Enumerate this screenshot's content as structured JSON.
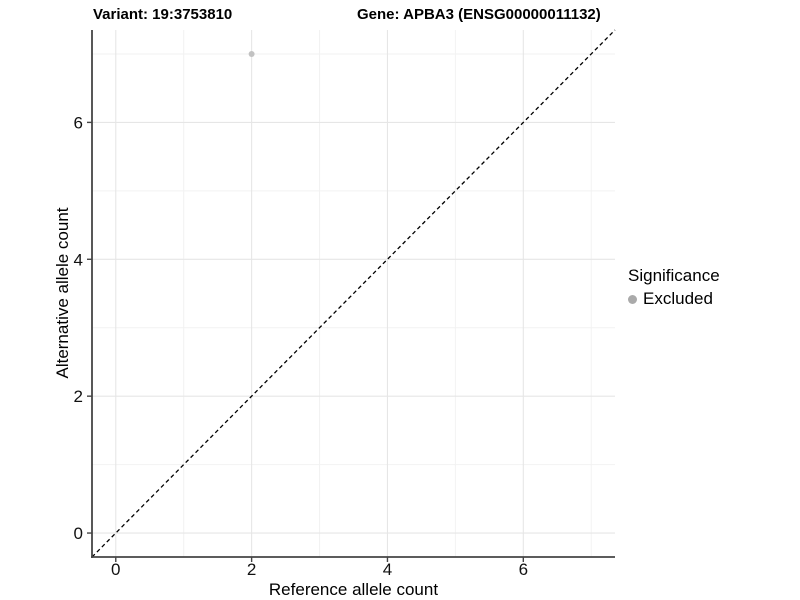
{
  "title": {
    "variant_label": "Variant: 19:3753810",
    "gene_label": "Gene: APBA3 (ENSG00000011132)"
  },
  "axes": {
    "x_label": "Reference allele count",
    "y_label": "Alternative allele count"
  },
  "legend": {
    "title": "Significance",
    "items": [
      {
        "label": "Excluded",
        "color": "#aaaaaa"
      }
    ]
  },
  "colors": {
    "background": "#ffffff",
    "major_grid": "#e6e6e6",
    "minor_grid": "#f2f2f2",
    "axis_line": "#454545",
    "tick_label": "#111111",
    "point_excluded": "#c2c2c2",
    "identity_line": "#000000"
  },
  "chart_data": {
    "type": "scatter",
    "title": "Variant: 19:3753810   Gene: APBA3 (ENSG00000011132)",
    "xlabel": "Reference allele count",
    "ylabel": "Alternative allele count",
    "xlim": [
      -0.35,
      7.35
    ],
    "ylim": [
      -0.35,
      7.35
    ],
    "x_ticks": [
      0,
      2,
      4,
      6
    ],
    "y_ticks": [
      0,
      2,
      4,
      6
    ],
    "x_minor_gridlines": [
      1,
      3,
      5,
      7
    ],
    "y_minor_gridlines": [
      1,
      3,
      5,
      7
    ],
    "grid": true,
    "legend_position": "right",
    "series": [
      {
        "name": "Excluded",
        "color": "#c2c2c2",
        "points": [
          {
            "x": 2,
            "y": 7
          }
        ]
      }
    ],
    "reference_line": {
      "kind": "identity",
      "from": [
        -0.35,
        -0.35
      ],
      "to": [
        7.35,
        7.35
      ],
      "style": "dashed",
      "color": "#000000"
    }
  }
}
